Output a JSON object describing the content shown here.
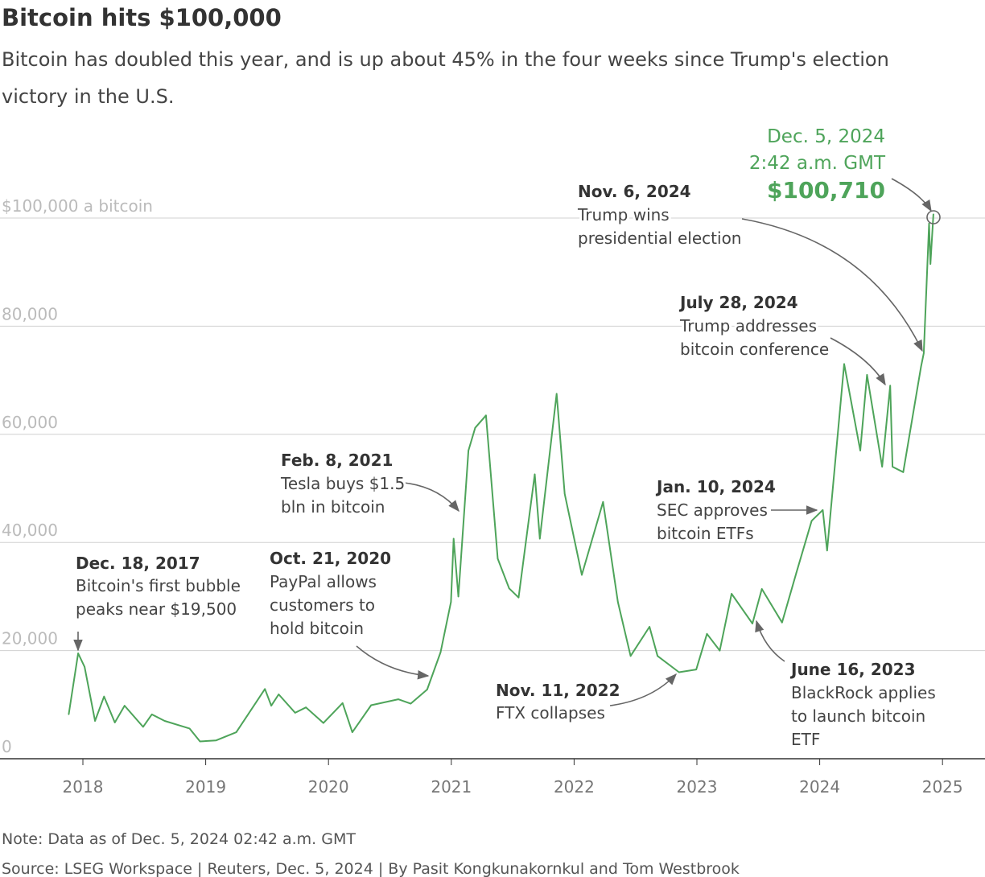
{
  "chart_data": {
    "type": "line",
    "title": "Bitcoin hits $100,000",
    "subtitle": [
      "Bitcoin has doubled this year, and is up about 45% in the four weeks since Trump's election",
      "victory in the U.S."
    ],
    "xlabel": "",
    "ylabel": "",
    "ylim": [
      0,
      100000
    ],
    "xlim": [
      "2017-11-01",
      "2025-03-01"
    ],
    "grid": true,
    "y_ticks": [
      {
        "value": 100000,
        "label": "$100,000 a bitcoin"
      },
      {
        "value": 80000,
        "label": "80,000"
      },
      {
        "value": 60000,
        "label": "60,000"
      },
      {
        "value": 40000,
        "label": "40,000"
      },
      {
        "value": 20000,
        "label": "20,000"
      },
      {
        "value": 0,
        "label": "0"
      }
    ],
    "x_ticks": [
      "2018",
      "2019",
      "2020",
      "2021",
      "2022",
      "2023",
      "2024",
      "2025"
    ],
    "color": "#4ea45a",
    "series": [
      {
        "x": [
          "2017-11-20",
          "2017-12-18",
          "2018-01-06",
          "2018-02-06",
          "2018-03-05",
          "2018-04-06",
          "2018-05-05",
          "2018-06-29",
          "2018-07-25",
          "2018-09-01",
          "2018-11-14",
          "2018-12-15",
          "2019-02-01",
          "2019-04-02",
          "2019-06-26",
          "2019-07-15",
          "2019-08-06",
          "2019-09-24",
          "2019-10-26",
          "2019-12-17",
          "2020-02-12",
          "2020-03-12",
          "2020-05-07",
          "2020-07-27",
          "2020-09-02",
          "2020-10-21",
          "2020-11-30",
          "2020-12-31",
          "2021-01-08",
          "2021-01-22",
          "2021-02-21",
          "2021-03-13",
          "2021-04-14",
          "2021-05-19",
          "2021-06-22",
          "2021-07-20",
          "2021-09-06",
          "2021-09-21",
          "2021-11-10",
          "2021-12-04",
          "2022-01-24",
          "2022-03-28",
          "2022-05-11",
          "2022-06-18",
          "2022-08-13",
          "2022-09-06",
          "2022-11-09",
          "2022-12-30",
          "2023-01-31",
          "2023-03-10",
          "2023-04-14",
          "2023-06-15",
          "2023-07-13",
          "2023-09-11",
          "2023-10-24",
          "2023-12-08",
          "2024-01-10",
          "2024-01-23",
          "2024-03-14",
          "2024-05-01",
          "2024-05-21",
          "2024-07-05",
          "2024-07-29",
          "2024-08-05",
          "2024-09-06",
          "2024-10-29",
          "2024-11-06",
          "2024-11-22",
          "2024-11-26",
          "2024-12-05"
        ],
        "y": [
          8200,
          19500,
          17000,
          7000,
          11500,
          6700,
          9800,
          5900,
          8200,
          7000,
          5600,
          3200,
          3400,
          4900,
          12900,
          9800,
          11900,
          8500,
          9500,
          6600,
          10300,
          4900,
          9900,
          11000,
          10200,
          12800,
          19700,
          29000,
          40700,
          30000,
          57000,
          61200,
          63500,
          37000,
          31500,
          29800,
          52600,
          40700,
          67500,
          49000,
          34000,
          47500,
          29000,
          19000,
          24400,
          19000,
          16000,
          16500,
          23100,
          20000,
          30500,
          25000,
          31400,
          25200,
          34500,
          44000,
          46000,
          38500,
          73000,
          57000,
          71000,
          54000,
          69000,
          54000,
          53000,
          72500,
          75000,
          99000,
          91500,
          100710
        ]
      }
    ],
    "annotations": [
      {
        "date": "Dec. 18, 2017",
        "lines": [
          "Bitcoin's first bubble",
          "peaks near $19,500"
        ]
      },
      {
        "date": "Oct. 21, 2020",
        "lines": [
          "PayPal allows",
          "customers to",
          "hold bitcoin"
        ]
      },
      {
        "date": "Feb. 8, 2021",
        "lines": [
          "Tesla buys $1.5",
          "bln in bitcoin"
        ]
      },
      {
        "date": "Nov. 11, 2022",
        "lines": [
          "FTX collapses"
        ]
      },
      {
        "date": "Jan. 10, 2024",
        "lines": [
          "SEC approves",
          "bitcoin ETFs"
        ]
      },
      {
        "date": "June 16, 2023",
        "lines": [
          "BlackRock applies",
          "to launch bitcoin",
          "ETF"
        ]
      },
      {
        "date": "July 28, 2024",
        "lines": [
          "Trump addresses",
          "bitcoin conference"
        ]
      },
      {
        "date": "Nov. 6, 2024",
        "lines": [
          "Trump wins",
          "presidential election"
        ]
      }
    ],
    "latest": {
      "date": "Dec. 5, 2024",
      "time": "2:42 a.m. GMT",
      "value": "$100,710"
    },
    "note": "Note: Data as of Dec. 5, 2024 02:42 a.m. GMT",
    "source": "Source: LSEG Workspace | Reuters, Dec. 5, 2024 | By Pasit Kongkunakornkul and Tom Westbrook"
  }
}
